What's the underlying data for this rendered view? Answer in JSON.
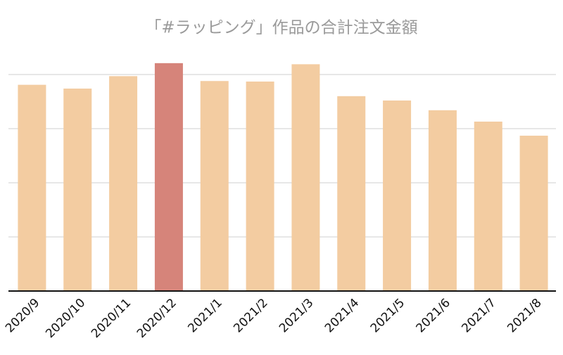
{
  "chart_data": {
    "type": "bar",
    "title": "「#ラッピング」作品の合計注文金額",
    "categories": [
      "2020/9",
      "2020/10",
      "2020/11",
      "2020/12",
      "2021/1",
      "2021/2",
      "2021/3",
      "2021/4",
      "2021/5",
      "2021/6",
      "2021/7",
      "2021/8"
    ],
    "values": [
      3.81,
      3.74,
      3.97,
      4.21,
      3.88,
      3.87,
      4.19,
      3.6,
      3.52,
      3.34,
      3.13,
      2.87
    ],
    "colors": [
      "#f3cca1",
      "#f3cca1",
      "#f3cca1",
      "#d6847a",
      "#f3cca1",
      "#f3cca1",
      "#f3cca1",
      "#f3cca1",
      "#f3cca1",
      "#f3cca1",
      "#f3cca1",
      "#f3cca1"
    ],
    "ylim": [
      0,
      5
    ],
    "yticks": [
      1,
      2,
      3,
      4
    ],
    "grid": true
  }
}
